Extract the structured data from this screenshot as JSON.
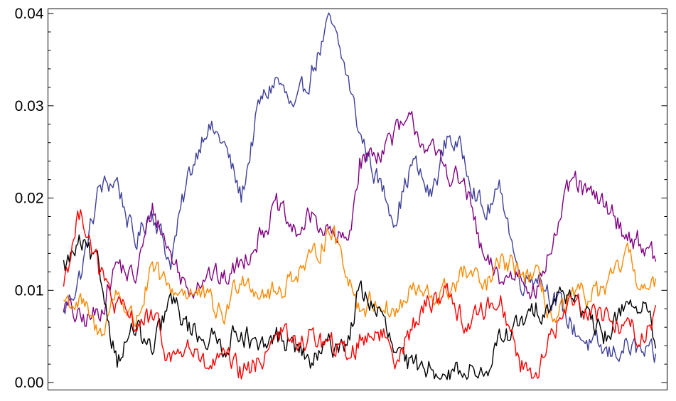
{
  "chart_data": {
    "type": "line",
    "title": "",
    "xlabel": "",
    "ylabel": "",
    "xlim": [
      0,
      1
    ],
    "ylim": [
      -0.0008,
      0.0405
    ],
    "yticks": [
      0.0,
      0.01,
      0.02,
      0.03,
      0.04
    ],
    "ytick_labels": [
      "0.00",
      "0.01",
      "0.02",
      "0.03",
      "0.04"
    ],
    "grid": false,
    "legend": "none",
    "series": [
      {
        "color": "#3d3f99",
        "x": [
          0,
          0.03,
          0.06,
          0.09,
          0.12,
          0.15,
          0.18,
          0.21,
          0.24,
          0.27,
          0.3,
          0.33,
          0.36,
          0.39,
          0.42,
          0.45,
          0.48,
          0.5,
          0.53,
          0.56,
          0.59,
          0.62,
          0.65,
          0.68,
          0.71,
          0.74,
          0.77,
          0.8,
          0.83,
          0.86,
          0.89,
          0.92,
          0.95,
          0.98,
          1
        ],
        "y": [
          0.0075,
          0.012,
          0.021,
          0.022,
          0.015,
          0.019,
          0.013,
          0.022,
          0.028,
          0.026,
          0.02,
          0.03,
          0.033,
          0.029,
          0.034,
          0.039,
          0.033,
          0.027,
          0.022,
          0.018,
          0.024,
          0.02,
          0.027,
          0.024,
          0.018,
          0.021,
          0.011,
          0.012,
          0.009,
          0.006,
          0.004,
          0.003,
          0.004,
          0.003,
          0.0025
        ]
      },
      {
        "color": "#800080",
        "x": [
          0,
          0.03,
          0.06,
          0.09,
          0.12,
          0.15,
          0.18,
          0.21,
          0.24,
          0.27,
          0.3,
          0.33,
          0.36,
          0.39,
          0.42,
          0.45,
          0.48,
          0.5,
          0.53,
          0.56,
          0.59,
          0.62,
          0.65,
          0.68,
          0.71,
          0.74,
          0.77,
          0.8,
          0.83,
          0.86,
          0.89,
          0.92,
          0.95,
          0.98,
          1
        ],
        "y": [
          0.0085,
          0.0065,
          0.0075,
          0.013,
          0.011,
          0.019,
          0.014,
          0.01,
          0.012,
          0.011,
          0.013,
          0.016,
          0.019,
          0.016,
          0.018,
          0.016,
          0.015,
          0.024,
          0.025,
          0.027,
          0.028,
          0.025,
          0.023,
          0.021,
          0.013,
          0.011,
          0.012,
          0.01,
          0.016,
          0.022,
          0.02,
          0.019,
          0.016,
          0.015,
          0.013
        ]
      },
      {
        "color": "#ff8800",
        "x": [
          0,
          0.03,
          0.06,
          0.09,
          0.12,
          0.15,
          0.18,
          0.21,
          0.24,
          0.27,
          0.3,
          0.33,
          0.36,
          0.39,
          0.42,
          0.45,
          0.48,
          0.5,
          0.53,
          0.56,
          0.59,
          0.62,
          0.65,
          0.68,
          0.71,
          0.74,
          0.77,
          0.8,
          0.83,
          0.86,
          0.89,
          0.92,
          0.95,
          0.98,
          1
        ],
        "y": [
          0.009,
          0.0085,
          0.005,
          0.01,
          0.0065,
          0.012,
          0.01,
          0.01,
          0.009,
          0.007,
          0.012,
          0.01,
          0.0095,
          0.012,
          0.013,
          0.017,
          0.012,
          0.008,
          0.009,
          0.0075,
          0.01,
          0.009,
          0.01,
          0.012,
          0.01,
          0.013,
          0.012,
          0.011,
          0.0065,
          0.009,
          0.0095,
          0.01,
          0.014,
          0.01,
          0.01
        ]
      },
      {
        "color": "#000000",
        "x": [
          0,
          0.03,
          0.06,
          0.09,
          0.12,
          0.15,
          0.18,
          0.21,
          0.24,
          0.27,
          0.3,
          0.33,
          0.36,
          0.39,
          0.42,
          0.45,
          0.48,
          0.5,
          0.53,
          0.56,
          0.59,
          0.62,
          0.65,
          0.68,
          0.71,
          0.74,
          0.77,
          0.8,
          0.83,
          0.86,
          0.89,
          0.92,
          0.95,
          0.98,
          1
        ],
        "y": [
          0.0125,
          0.015,
          0.012,
          0.0025,
          0.006,
          0.003,
          0.009,
          0.006,
          0.005,
          0.004,
          0.006,
          0.003,
          0.005,
          0.004,
          0.002,
          0.004,
          0.0045,
          0.01,
          0.008,
          0.003,
          0.0015,
          0.002,
          0.0005,
          0.002,
          0.0005,
          0.005,
          0.006,
          0.008,
          0.009,
          0.01,
          0.006,
          0.005,
          0.009,
          0.008,
          0.0045
        ]
      },
      {
        "color": "#ff0000",
        "x": [
          0,
          0.03,
          0.06,
          0.09,
          0.12,
          0.15,
          0.18,
          0.21,
          0.24,
          0.27,
          0.3,
          0.33,
          0.36,
          0.39,
          0.42,
          0.45,
          0.48,
          0.5,
          0.53,
          0.56,
          0.59,
          0.62,
          0.65,
          0.68,
          0.71,
          0.74,
          0.77,
          0.8,
          0.83,
          0.86,
          0.89,
          0.92,
          0.95,
          0.98,
          1
        ],
        "y": [
          0.011,
          0.019,
          0.012,
          0.008,
          0.0065,
          0.007,
          0.0025,
          0.004,
          0.0015,
          0.0025,
          0.001,
          0.002,
          0.006,
          0.004,
          0.005,
          0.004,
          0.003,
          0.0045,
          0.006,
          0.003,
          0.006,
          0.009,
          0.01,
          0.006,
          0.008,
          0.009,
          0.002,
          0.001,
          0.006,
          0.009,
          0.008,
          0.007,
          0.006,
          0.005,
          0.0075
        ]
      }
    ]
  }
}
